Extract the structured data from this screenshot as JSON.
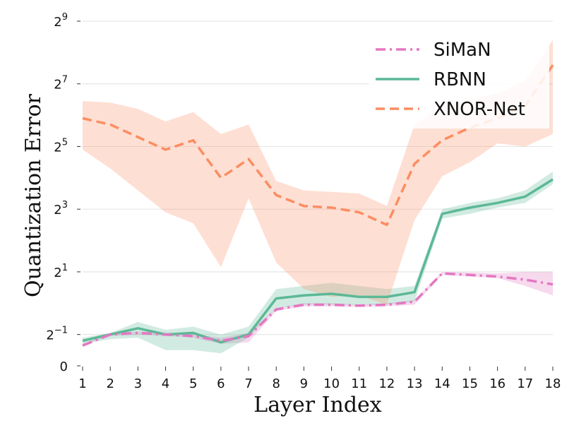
{
  "chart_data": {
    "type": "line",
    "xlabel": "Layer Index",
    "ylabel": "Quantization Error",
    "x": [
      1,
      2,
      3,
      4,
      5,
      6,
      7,
      8,
      9,
      10,
      11,
      12,
      13,
      14,
      15,
      16,
      17,
      18
    ],
    "xlim": [
      1,
      18
    ],
    "y_scale": "log2",
    "ylim_log2": [
      -2,
      9
    ],
    "yticks": [
      {
        "label": "0",
        "log2": -2
      },
      {
        "label": "2",
        "exp": "−1",
        "log2": -1
      },
      {
        "label": "2",
        "exp": "1",
        "log2": 1
      },
      {
        "label": "2",
        "exp": "3",
        "log2": 3
      },
      {
        "label": "2",
        "exp": "5",
        "log2": 5
      },
      {
        "label": "2",
        "exp": "7",
        "log2": 7
      },
      {
        "label": "2",
        "exp": "9",
        "log2": 9
      }
    ],
    "grid": true,
    "legend_position": "top-right",
    "series": [
      {
        "name": "SiMaN",
        "color": "#e377c2",
        "dash": "dashdot",
        "log2_values": [
          -1.35,
          -1.0,
          -0.95,
          -1.0,
          -1.05,
          -1.2,
          -1.05,
          -0.2,
          -0.05,
          -0.05,
          -0.08,
          -0.05,
          0.05,
          0.95,
          0.9,
          0.85,
          0.75,
          0.6
        ],
        "band_low": [
          -1.35,
          -1.05,
          -1.0,
          -1.05,
          -1.1,
          -1.3,
          -1.25,
          -0.25,
          -0.1,
          -0.1,
          -0.12,
          -0.1,
          -0.05,
          0.9,
          0.85,
          0.8,
          0.55,
          0.25
        ],
        "band_high": [
          -1.3,
          -0.95,
          -0.9,
          -0.95,
          -1.0,
          -1.1,
          -0.95,
          -0.15,
          0.0,
          0.0,
          -0.04,
          0.0,
          0.1,
          1.0,
          0.98,
          0.95,
          1.0,
          1.0
        ]
      },
      {
        "name": "RBNN",
        "color": "#5cb896",
        "dash": "solid",
        "log2_values": [
          -1.2,
          -1.0,
          -0.8,
          -1.0,
          -0.95,
          -1.25,
          -1.0,
          0.15,
          0.25,
          0.3,
          0.2,
          0.2,
          0.35,
          2.85,
          3.05,
          3.2,
          3.4,
          3.95
        ],
        "band_low": [
          -1.3,
          -1.15,
          -1.1,
          -1.5,
          -1.5,
          -1.6,
          -1.1,
          -0.15,
          -0.05,
          -0.05,
          -0.05,
          -0.05,
          0.05,
          2.7,
          2.85,
          3.05,
          3.2,
          3.8
        ],
        "band_high": [
          -1.1,
          -0.95,
          -0.6,
          -0.85,
          -0.75,
          -1.0,
          -0.75,
          0.45,
          0.55,
          0.65,
          0.55,
          0.45,
          0.55,
          3.0,
          3.2,
          3.35,
          3.6,
          4.2
        ]
      },
      {
        "name": "XNOR-Net",
        "color": "#fc8d62",
        "dash": "dashed",
        "log2_values": [
          5.9,
          5.7,
          5.3,
          4.9,
          5.2,
          4.0,
          4.6,
          3.45,
          3.1,
          3.05,
          2.9,
          2.5,
          4.45,
          5.2,
          5.6,
          5.9,
          6.3,
          7.6
        ],
        "band_low": [
          4.9,
          4.3,
          3.6,
          2.9,
          2.55,
          1.15,
          3.35,
          1.3,
          0.45,
          0.2,
          0.25,
          -0.05,
          2.65,
          4.05,
          4.5,
          5.1,
          5.0,
          5.4
        ],
        "band_high": [
          6.45,
          6.4,
          6.2,
          5.8,
          6.1,
          5.4,
          5.7,
          3.9,
          3.6,
          3.55,
          3.5,
          3.1,
          5.7,
          6.3,
          6.5,
          6.7,
          7.1,
          8.4
        ]
      }
    ]
  }
}
